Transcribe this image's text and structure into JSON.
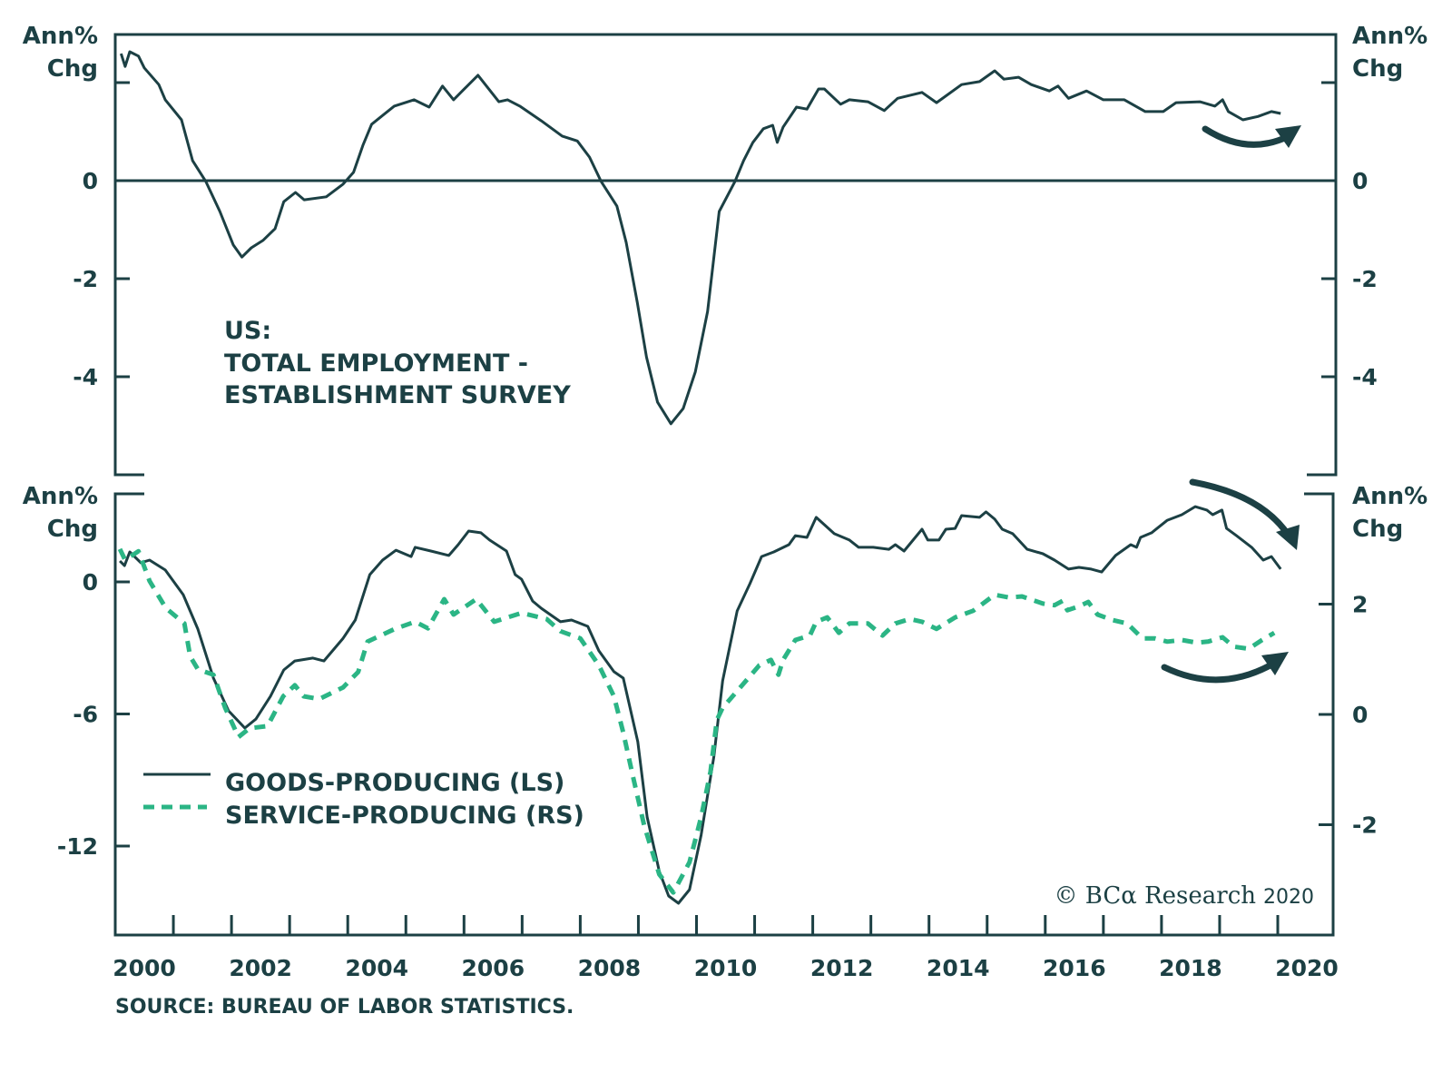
{
  "colors": {
    "ink": "#1c4044",
    "service": "#2bb585",
    "background": "#ffffff"
  },
  "source": "SOURCE: BUREAU OF LABOR STATISTICS.",
  "credit": {
    "text": "© BCα Research",
    "year": "2020"
  },
  "chart_data": [
    {
      "type": "line",
      "panel": "top",
      "title": "US: TOTAL EMPLOYMENT - ESTABLISHMENT SURVEY",
      "title_lines": [
        "US:",
        "TOTAL EMPLOYMENT -",
        "ESTABLISHMENT SURVEY"
      ],
      "ylabel_left": [
        "Ann%",
        "Chg"
      ],
      "ylabel_right": [
        "Ann%",
        "Chg"
      ],
      "ylim": [
        -5.8,
        3.0
      ],
      "yticks": [
        2,
        0,
        -2,
        -4
      ],
      "ytick_labels": [
        "0",
        "-2",
        "-4"
      ],
      "xlim": [
        2000,
        2021
      ],
      "zero_line": true,
      "grid": false,
      "annotation": "curved arrow pointing up (recovery)",
      "series": [
        {
          "name": "Total Employment",
          "style": "solid",
          "x": [
            2000.1,
            2000.17,
            2000.25,
            2000.4,
            2000.5,
            2000.75,
            2000.86,
            2001.14,
            2001.33,
            2001.56,
            2001.8,
            2002.03,
            2002.18,
            2002.34,
            2002.54,
            2002.75,
            2002.9,
            2003.1,
            2003.25,
            2003.63,
            2003.92,
            2004.1,
            2004.26,
            2004.41,
            2004.8,
            2005.14,
            2005.4,
            2005.63,
            2005.82,
            2006.24,
            2006.6,
            2006.75,
            2006.96,
            2007.33,
            2007.69,
            2007.95,
            2008.16,
            2008.36,
            2008.63,
            2008.79,
            2008.98,
            2009.14,
            2009.33,
            2009.56,
            2009.77,
            2009.98,
            2010.19,
            2010.39,
            2010.66,
            2010.81,
            2010.97,
            2011.15,
            2011.31,
            2011.39,
            2011.49,
            2011.72,
            2011.9,
            2012.1,
            2012.2,
            2012.37,
            2012.48,
            2012.63,
            2012.95,
            2013.23,
            2013.46,
            2013.88,
            2014.13,
            2014.56,
            2014.87,
            2015.13,
            2015.29,
            2015.54,
            2015.76,
            2016.07,
            2016.22,
            2016.4,
            2016.71,
            2017.0,
            2017.36,
            2017.72,
            2018.03,
            2018.25,
            2018.66,
            2018.92,
            2019.05,
            2019.15,
            2019.4,
            2019.66,
            2019.89,
            2020.05
          ],
          "values": [
            2.59,
            2.33,
            2.63,
            2.54,
            2.3,
            1.96,
            1.65,
            1.24,
            0.41,
            -0.02,
            -0.63,
            -1.31,
            -1.56,
            -1.37,
            -1.22,
            -0.98,
            -0.43,
            -0.24,
            -0.39,
            -0.33,
            -0.07,
            0.17,
            0.72,
            1.15,
            1.52,
            1.65,
            1.5,
            1.93,
            1.65,
            2.15,
            1.61,
            1.65,
            1.52,
            1.22,
            0.91,
            0.81,
            0.48,
            -0.02,
            -0.52,
            -1.26,
            -2.48,
            -3.6,
            -4.52,
            -4.96,
            -4.65,
            -3.9,
            -2.67,
            -0.63,
            -0.02,
            0.41,
            0.78,
            1.06,
            1.13,
            0.78,
            1.09,
            1.5,
            1.46,
            1.87,
            1.87,
            1.68,
            1.56,
            1.65,
            1.61,
            1.43,
            1.68,
            1.8,
            1.59,
            1.96,
            2.02,
            2.24,
            2.07,
            2.11,
            1.96,
            1.83,
            1.93,
            1.68,
            1.83,
            1.65,
            1.65,
            1.41,
            1.41,
            1.59,
            1.61,
            1.52,
            1.65,
            1.41,
            1.24,
            1.31,
            1.41,
            1.37
          ]
        }
      ]
    },
    {
      "type": "line",
      "panel": "bottom",
      "ylabel_left": [
        "Ann%",
        "Chg"
      ],
      "ylabel_right": [
        "Ann%",
        "Chg"
      ],
      "ylim_left": [
        -15.6,
        4.1
      ],
      "yticks_left": [
        0,
        -6,
        -12
      ],
      "ylim_right": [
        -3.6,
        4.1
      ],
      "yticks_right": [
        2,
        0,
        -2
      ],
      "xlim": [
        2000,
        2021
      ],
      "xticks": [
        2000,
        2001,
        2002,
        2003,
        2004,
        2005,
        2006,
        2007,
        2008,
        2009,
        2010,
        2011,
        2012,
        2013,
        2014,
        2015,
        2016,
        2017,
        2018,
        2019,
        2020,
        2021
      ],
      "xtick_labels": [
        "2000",
        "2002",
        "2004",
        "2006",
        "2008",
        "2010",
        "2012",
        "2014",
        "2016",
        "2018",
        "2020"
      ],
      "grid": false,
      "legend": {
        "position": "bottom-left",
        "entries": [
          "GOODS-PRODUCING (LS)",
          "SERVICE-PRODUCING (RS)"
        ]
      },
      "annotations": [
        "curved arrow pointing down (goods decline)",
        "curved arrow pointing up (services recovery)"
      ],
      "series": [
        {
          "name": "GOODS-PRODUCING (LS)",
          "axis": "left",
          "style": "solid",
          "x": [
            2000.08,
            2000.16,
            2000.25,
            2000.44,
            2000.59,
            2000.86,
            2001.17,
            2001.42,
            2001.69,
            2001.95,
            2002.23,
            2002.42,
            2002.67,
            2002.9,
            2003.09,
            2003.4,
            2003.59,
            2003.92,
            2004.13,
            2004.38,
            2004.6,
            2004.83,
            2005.09,
            2005.16,
            2005.43,
            2005.74,
            2005.9,
            2006.08,
            2006.29,
            2006.44,
            2006.73,
            2006.88,
            2006.99,
            2007.18,
            2007.33,
            2007.66,
            2007.85,
            2008.13,
            2008.32,
            2008.58,
            2008.74,
            2008.99,
            2009.15,
            2009.36,
            2009.52,
            2009.69,
            2009.88,
            2010.08,
            2010.3,
            2010.45,
            2010.7,
            2010.92,
            2011.12,
            2011.33,
            2011.59,
            2011.7,
            2011.9,
            2012.06,
            2012.37,
            2012.63,
            2012.79,
            2013.04,
            2013.31,
            2013.42,
            2013.57,
            2013.88,
            2013.98,
            2014.17,
            2014.29,
            2014.45,
            2014.56,
            2014.87,
            2014.98,
            2015.13,
            2015.26,
            2015.44,
            2015.69,
            2015.96,
            2016.16,
            2016.4,
            2016.58,
            2016.79,
            2016.97,
            2017.21,
            2017.47,
            2017.57,
            2017.64,
            2017.83,
            2018.1,
            2018.35,
            2018.58,
            2018.78,
            2018.88,
            2019.04,
            2019.12,
            2019.29,
            2019.55,
            2019.75,
            2019.89,
            2020.05
          ],
          "values": [
            0.95,
            0.74,
            1.36,
            0.87,
            0.99,
            0.54,
            -0.58,
            -2.14,
            -4.37,
            -5.86,
            -6.64,
            -6.23,
            -5.2,
            -4.0,
            -3.59,
            -3.46,
            -3.59,
            -2.56,
            -1.73,
            0.33,
            0.99,
            1.44,
            1.15,
            1.57,
            1.4,
            1.2,
            1.69,
            2.31,
            2.23,
            1.9,
            1.4,
            0.33,
            0.12,
            -0.87,
            -1.2,
            -1.81,
            -1.73,
            -2.02,
            -3.13,
            -4.08,
            -4.37,
            -7.26,
            -10.68,
            -13.15,
            -14.27,
            -14.6,
            -13.98,
            -11.5,
            -7.92,
            -4.49,
            -1.32,
            -0.08,
            1.15,
            1.36,
            1.69,
            2.1,
            2.02,
            2.93,
            2.19,
            1.9,
            1.57,
            1.57,
            1.48,
            1.69,
            1.4,
            2.39,
            1.9,
            1.9,
            2.39,
            2.43,
            3.01,
            2.93,
            3.18,
            2.85,
            2.39,
            2.19,
            1.48,
            1.28,
            0.99,
            0.58,
            0.66,
            0.58,
            0.45,
            1.2,
            1.69,
            1.57,
            2.02,
            2.23,
            2.8,
            3.05,
            3.42,
            3.26,
            3.05,
            3.26,
            2.43,
            2.1,
            1.57,
            0.99,
            1.15,
            0.58
          ]
        },
        {
          "name": "SERVICE-PRODUCING (RS)",
          "axis": "right",
          "style": "dashed",
          "x": [
            2000.08,
            2000.17,
            2000.4,
            2000.59,
            2000.87,
            2001.19,
            2001.29,
            2001.42,
            2001.69,
            2001.89,
            2002.12,
            2002.31,
            2002.62,
            2002.89,
            2003.09,
            2003.24,
            2003.51,
            2003.92,
            2004.18,
            2004.34,
            2004.81,
            2005.16,
            2005.38,
            2005.66,
            2005.82,
            2006.21,
            2006.52,
            2006.99,
            2007.42,
            2007.66,
            2008.0,
            2008.32,
            2008.58,
            2008.74,
            2008.9,
            2009.1,
            2009.36,
            2009.6,
            2009.88,
            2010.08,
            2010.24,
            2010.35,
            2010.45,
            2010.81,
            2011.08,
            2011.28,
            2011.41,
            2011.49,
            2011.7,
            2011.95,
            2012.06,
            2012.25,
            2012.45,
            2012.63,
            2012.95,
            2013.2,
            2013.42,
            2013.67,
            2013.88,
            2014.13,
            2014.45,
            2014.76,
            2015.13,
            2015.38,
            2015.6,
            2015.96,
            2016.16,
            2016.3,
            2016.38,
            2016.58,
            2016.74,
            2016.9,
            2017.16,
            2017.41,
            2017.67,
            2017.88,
            2018.1,
            2018.35,
            2018.61,
            2018.8,
            2019.05,
            2019.24,
            2019.5,
            2019.73,
            2019.94
          ],
          "values": [
            3.0,
            2.8,
            2.96,
            2.42,
            1.93,
            1.65,
            1.05,
            0.82,
            0.72,
            0.12,
            -0.41,
            -0.25,
            -0.21,
            0.33,
            0.53,
            0.33,
            0.28,
            0.49,
            0.77,
            1.32,
            1.55,
            1.68,
            1.56,
            2.09,
            1.81,
            2.09,
            1.68,
            1.84,
            1.73,
            1.51,
            1.38,
            0.89,
            0.33,
            -0.33,
            -1.09,
            -2.02,
            -2.9,
            -3.23,
            -2.68,
            -1.86,
            -1.04,
            -0.1,
            0.12,
            0.56,
            0.89,
            0.99,
            0.72,
            0.99,
            1.35,
            1.43,
            1.68,
            1.76,
            1.48,
            1.65,
            1.65,
            1.43,
            1.65,
            1.73,
            1.68,
            1.55,
            1.76,
            1.88,
            2.17,
            2.12,
            2.14,
            2.01,
            1.98,
            2.06,
            1.89,
            1.96,
            2.04,
            1.81,
            1.71,
            1.65,
            1.38,
            1.38,
            1.32,
            1.35,
            1.3,
            1.32,
            1.4,
            1.23,
            1.19,
            1.35,
            1.48
          ]
        }
      ]
    }
  ]
}
